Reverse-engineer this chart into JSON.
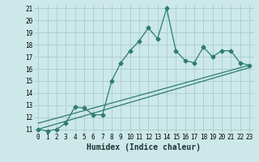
{
  "title": "",
  "xlabel": "Humidex (Indice chaleur)",
  "ylabel": "",
  "xlim": [
    -0.5,
    23.5
  ],
  "ylim": [
    10.7,
    21.3
  ],
  "yticks": [
    11,
    12,
    13,
    14,
    15,
    16,
    17,
    18,
    19,
    20,
    21
  ],
  "xticks": [
    0,
    1,
    2,
    3,
    4,
    5,
    6,
    7,
    8,
    9,
    10,
    11,
    12,
    13,
    14,
    15,
    16,
    17,
    18,
    19,
    20,
    21,
    22,
    23
  ],
  "xtick_labels": [
    "0",
    "1",
    "2",
    "3",
    "4",
    "5",
    "6",
    "7",
    "8",
    "9",
    "10",
    "11",
    "12",
    "13",
    "14",
    "15",
    "16",
    "17",
    "18",
    "19",
    "20",
    "21",
    "22",
    "23"
  ],
  "bg_color": "#cce8e8",
  "grid_color": "#aacccc",
  "line_color": "#2d7d6e",
  "series1_x": [
    0,
    1,
    2,
    3,
    4,
    5,
    6,
    7,
    8,
    9,
    10,
    11,
    12,
    13,
    14,
    15,
    16,
    17,
    18,
    19,
    20,
    21,
    22,
    23
  ],
  "series1_y": [
    11.0,
    10.85,
    11.0,
    11.5,
    12.85,
    12.75,
    12.2,
    12.2,
    15.0,
    16.5,
    17.5,
    18.3,
    19.4,
    18.5,
    21.0,
    17.5,
    16.7,
    16.5,
    17.8,
    17.0,
    17.5,
    17.5,
    16.5,
    16.3
  ],
  "series2_x": [
    0,
    23
  ],
  "series2_y": [
    11.5,
    16.3
  ],
  "series3_x": [
    0,
    23
  ],
  "series3_y": [
    11.0,
    16.1
  ],
  "xlabel_fontsize": 7,
  "tick_fontsize": 5.5,
  "marker_size": 2.5,
  "line_width": 0.9
}
